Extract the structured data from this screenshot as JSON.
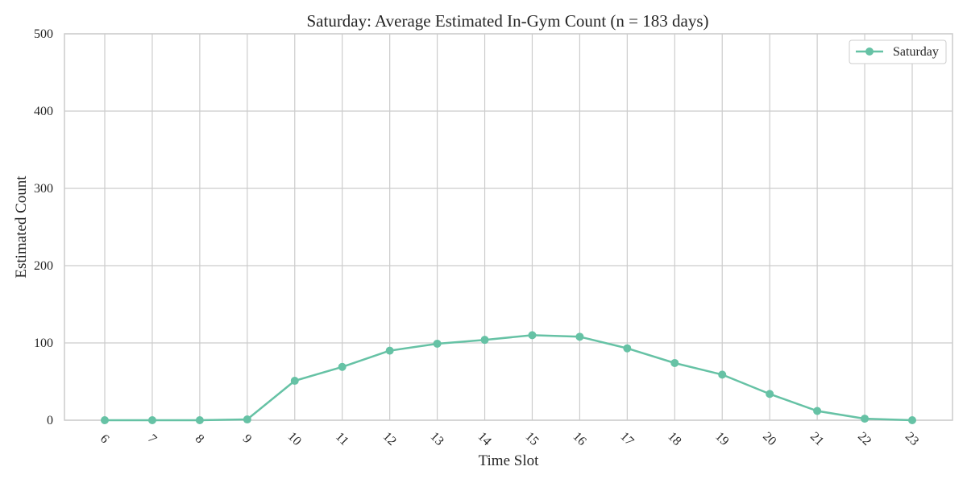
{
  "chart_data": {
    "type": "line",
    "title": "Saturday: Average Estimated In-Gym Count (n = 183 days)",
    "xlabel": "Time Slot",
    "ylabel": "Estimated Count",
    "categories": [
      "6",
      "7",
      "8",
      "9",
      "10",
      "11",
      "12",
      "13",
      "14",
      "15",
      "16",
      "17",
      "18",
      "19",
      "20",
      "21",
      "22",
      "23"
    ],
    "series": [
      {
        "name": "Saturday",
        "color": "#66c2a5",
        "values": [
          0,
          0,
          0,
          1,
          51,
          69,
          90,
          99,
          104,
          110,
          108,
          93,
          74,
          59,
          34,
          12,
          2,
          0
        ]
      }
    ],
    "ylim": [
      0,
      500
    ],
    "yticks": [
      0,
      100,
      200,
      300,
      400,
      500
    ],
    "grid": true,
    "legend_position": "top-right"
  }
}
